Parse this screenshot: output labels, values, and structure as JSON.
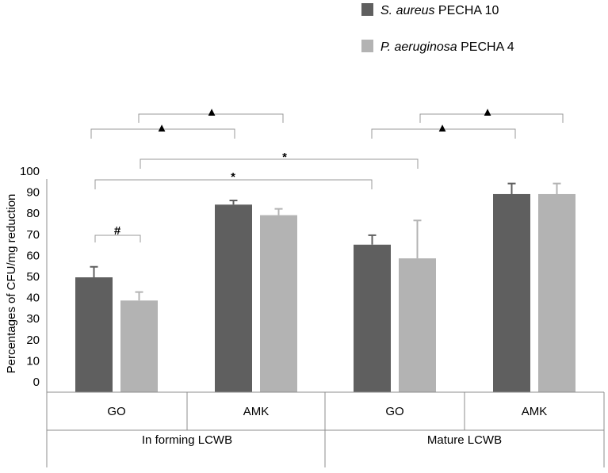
{
  "chart_data": {
    "type": "bar",
    "ylabel": "Percentages of CFU/mg reduction",
    "ylim": [
      0,
      100
    ],
    "yticks": [
      0,
      10,
      20,
      30,
      40,
      50,
      60,
      70,
      80,
      90,
      100
    ],
    "categories": [
      "GO",
      "AMK",
      "GO",
      "AMK"
    ],
    "groups": [
      "In forming LCWB",
      "Mature LCWB"
    ],
    "series": [
      {
        "name_italic": "S. aureus",
        "name_rest": " PECHA 10",
        "color": "#5f5f5f",
        "values": [
          54.5,
          89,
          70,
          94
        ],
        "errors": [
          5,
          2,
          4.5,
          5
        ]
      },
      {
        "name_italic": "P. aeruginosa",
        "name_rest": " PECHA 4",
        "color": "#b3b3b3",
        "values": [
          43.5,
          84,
          63.5,
          94
        ],
        "errors": [
          4,
          3,
          18,
          5
        ]
      }
    ],
    "annotations": {
      "hash": "#",
      "star": "*",
      "triangle": "▲"
    }
  }
}
